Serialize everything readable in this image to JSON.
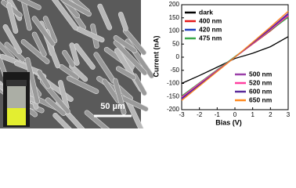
{
  "scale_bar": "50 µm",
  "chart_data": {
    "type": "line",
    "x_label": "Bias (V)",
    "y_label": "Current (nA)",
    "x": [
      -3,
      -2,
      -1,
      0,
      1,
      2,
      3
    ],
    "series": [
      {
        "name": "dark",
        "color": "#000000",
        "values": [
          -100,
          -70,
          -38,
          -5,
          15,
          40,
          78
        ]
      },
      {
        "name": "400 nm",
        "color": "#e41a1c",
        "values": [
          -150,
          -100,
          -50,
          0,
          50,
          100,
          155
        ]
      },
      {
        "name": "420 nm",
        "color": "#1f3fbf",
        "values": [
          -155,
          -103,
          -52,
          0,
          52,
          105,
          160
        ]
      },
      {
        "name": "475 nm",
        "color": "#3aa84a",
        "values": [
          -148,
          -98,
          -48,
          2,
          52,
          102,
          152
        ]
      },
      {
        "name": "500 nm",
        "color": "#9a3fa8",
        "values": [
          -160,
          -107,
          -54,
          0,
          55,
          110,
          168
        ]
      },
      {
        "name": "520 nm",
        "color": "#ff3fa0",
        "values": [
          -152,
          -100,
          -50,
          0,
          52,
          104,
          158
        ]
      },
      {
        "name": "600 nm",
        "color": "#5a2a9a",
        "values": [
          -158,
          -105,
          -53,
          0,
          54,
          108,
          165
        ]
      },
      {
        "name": "650 nm",
        "color": "#ff8a20",
        "values": [
          -165,
          -110,
          -55,
          0,
          57,
          115,
          175
        ]
      }
    ],
    "xlim": [
      -3,
      3
    ],
    "xticks": [
      -3,
      -2,
      -1,
      0,
      1,
      2,
      3
    ],
    "ylim": [
      -200,
      200
    ],
    "yticks": [
      -200,
      -150,
      -100,
      -50,
      0,
      50,
      100,
      150,
      200
    ],
    "grid": false
  }
}
